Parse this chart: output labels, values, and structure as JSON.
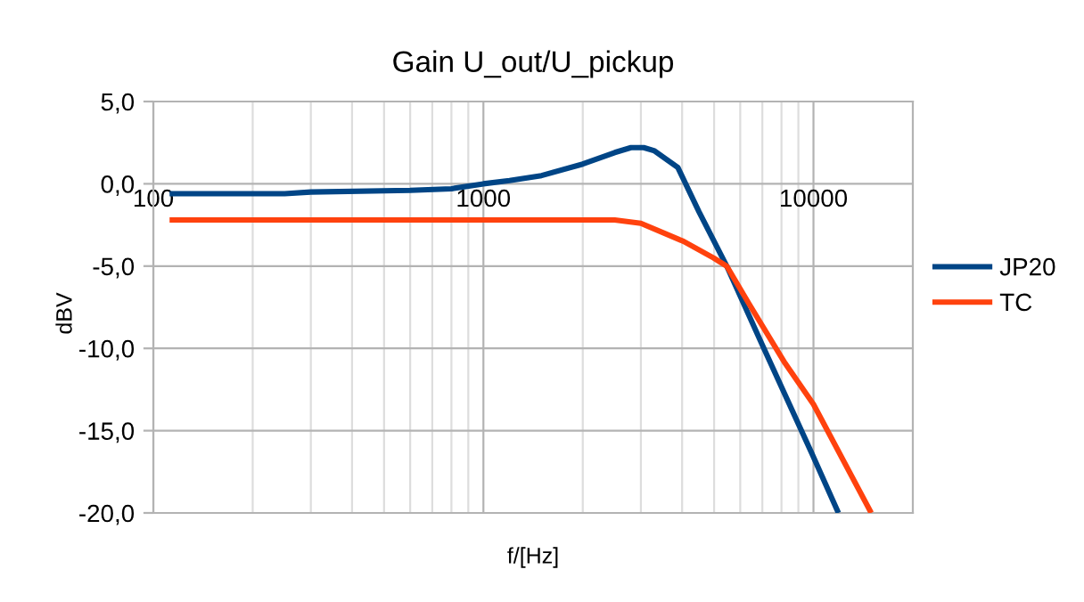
{
  "chart_data": {
    "type": "line",
    "title": "Gain U_out/U_pickup",
    "xlabel": "f/[Hz]",
    "ylabel": "dBV",
    "log": "x",
    "grid": true,
    "legend": "right",
    "marker": "none",
    "line_style": "solid",
    "xlim": [
      100,
      20000
    ],
    "xticks": [
      100,
      {
        "value": 200,
        "label": null
      },
      {
        "value": 300,
        "label": null
      },
      {
        "value": 400,
        "label": null
      },
      {
        "value": 500,
        "label": null
      },
      {
        "value": 600,
        "label": null
      },
      {
        "value": 700,
        "label": null
      },
      {
        "value": 800,
        "label": null
      },
      {
        "value": 900,
        "label": null
      },
      1000,
      {
        "value": 2000,
        "label": null
      },
      {
        "value": 3000,
        "label": null
      },
      {
        "value": 4000,
        "label": null
      },
      {
        "value": 5000,
        "label": null
      },
      {
        "value": 6000,
        "label": null
      },
      {
        "value": 7000,
        "label": null
      },
      {
        "value": 8000,
        "label": null
      },
      {
        "value": 9000,
        "label": null
      },
      10000
    ],
    "ylim": [
      -20,
      5
    ],
    "yticks": [
      {
        "value": 5,
        "label": "5,0"
      },
      {
        "value": 0,
        "label": "0,0"
      },
      {
        "value": -5,
        "label": "-5,0"
      },
      {
        "value": -10,
        "label": "-10,0"
      },
      {
        "value": -15,
        "label": "-15,0"
      },
      {
        "value": -20,
        "label": "-20,0"
      }
    ],
    "series": [
      {
        "name": "JP20",
        "color": "#004586",
        "x": [
          112,
          250,
          300,
          600,
          800,
          1000,
          1200,
          1500,
          2000,
          2500,
          2800,
          3060,
          3300,
          3880,
          4500,
          5460,
          7000,
          10000,
          11900
        ],
        "values": [
          -0.6,
          -0.6,
          -0.5,
          -0.4,
          -0.3,
          0,
          0.2,
          0.5,
          1.2,
          1.9,
          2.2,
          2.2,
          2.0,
          1.0,
          -1.7,
          -5.0,
          -9.8,
          -16.6,
          -20
        ]
      },
      {
        "name": "TC",
        "color": "#ff420e",
        "x": [
          112,
          1000,
          2500,
          3000,
          4045,
          4980,
          5460,
          6380,
          8200,
          10000,
          14960
        ],
        "values": [
          -2.2,
          -2.2,
          -2.2,
          -2.4,
          -3.5,
          -4.5,
          -5.0,
          -7.3,
          -10.9,
          -13.4,
          -20
        ]
      }
    ]
  }
}
